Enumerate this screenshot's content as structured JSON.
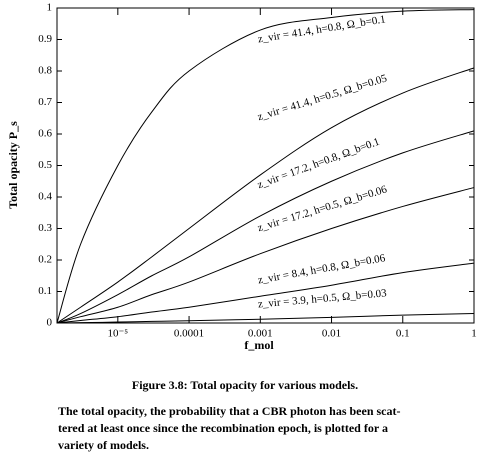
{
  "chart_data": {
    "type": "line",
    "x_label": "f_mol",
    "y_label": "Total opacity P_s",
    "log_x": true,
    "x": [
      1.4e-06,
      3e-06,
      1e-05,
      3e-05,
      0.0001,
      0.001,
      0.01,
      0.1,
      1
    ],
    "series": [
      {
        "name": "z_vir = 41.4, h=0.8, Ω_b=0.1",
        "color": "#000000",
        "values": [
          0,
          0.25,
          0.5,
          0.67,
          0.8,
          0.93,
          0.97,
          0.99,
          0.995
        ]
      },
      {
        "name": "z_vir = 41.4, h=0.5, Ω_b=0.05",
        "color": "#000000",
        "values": [
          0,
          0.05,
          0.13,
          0.21,
          0.3,
          0.47,
          0.62,
          0.73,
          0.81
        ]
      },
      {
        "name": "z_vir = 17.2, h=0.8, Ω_b=0.1",
        "color": "#000000",
        "values": [
          0,
          0.03,
          0.09,
          0.15,
          0.21,
          0.34,
          0.45,
          0.54,
          0.61
        ]
      },
      {
        "name": "z_vir = 17.2, h=0.5, Ω_b=0.06",
        "color": "#000000",
        "values": [
          0,
          0.02,
          0.05,
          0.09,
          0.13,
          0.22,
          0.3,
          0.37,
          0.43
        ]
      },
      {
        "name": "z_vir = 8.4, h=0.8, Ω_b=0.06",
        "color": "#000000",
        "values": [
          0,
          0.008,
          0.02,
          0.035,
          0.05,
          0.085,
          0.12,
          0.16,
          0.19
        ]
      },
      {
        "name": "z_vir = 3.9, h=0.5, Ω_b=0.03",
        "color": "#000000",
        "values": [
          0,
          0.001,
          0.003,
          0.005,
          0.007,
          0.012,
          0.018,
          0.025,
          0.03
        ]
      }
    ],
    "xlim": [
      1.4e-06,
      1
    ],
    "xticks": [
      {
        "value": 1e-05,
        "label": "10⁻⁵"
      },
      0.0001,
      0.001,
      0.01,
      0.1,
      1
    ],
    "ylim": [
      0,
      1
    ],
    "yticks": [
      0,
      0.1,
      0.2,
      0.3,
      0.4,
      0.5,
      0.6,
      0.7,
      0.8,
      0.9,
      1
    ]
  },
  "caption": "Figure 3.8: Total opacity for various models.",
  "paragraph": [
    "The total opacity, the probability that a CBR photon has been scat-",
    "tered at least once since the recombination epoch, is plotted for a",
    "variety of models."
  ]
}
